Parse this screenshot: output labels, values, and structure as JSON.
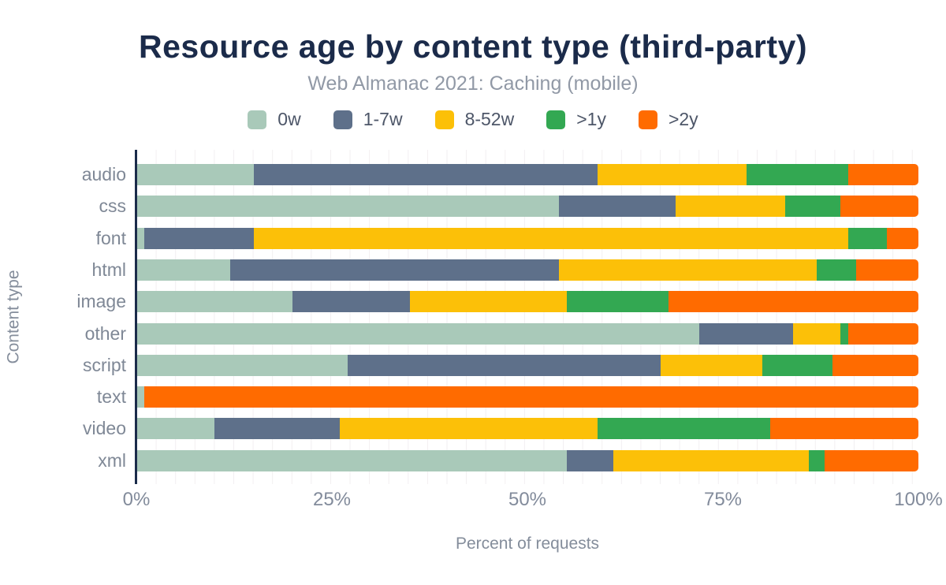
{
  "chart_data": {
    "type": "bar",
    "orientation": "horizontal",
    "stacked": true,
    "title": "Resource age by content type (third-party)",
    "subtitle": "Web Almanac 2021: Caching (mobile)",
    "xlabel": "Percent of requests",
    "ylabel": "Content type",
    "categories": [
      "audio",
      "css",
      "font",
      "html",
      "image",
      "other",
      "script",
      "text",
      "video",
      "xml"
    ],
    "series": [
      {
        "name": "0w",
        "color": "#a9c9b9",
        "values": [
          15,
          54,
          1,
          12,
          20,
          72,
          27,
          1,
          10,
          55
        ]
      },
      {
        "name": "1-7w",
        "color": "#5e708a",
        "values": [
          44,
          15,
          14,
          42,
          15,
          12,
          40,
          0,
          16,
          6
        ]
      },
      {
        "name": "8-52w",
        "color": "#fcc008",
        "values": [
          19,
          14,
          76,
          33,
          20,
          6,
          13,
          0,
          33,
          25
        ]
      },
      {
        "name": ">1y",
        "color": "#33a852",
        "values": [
          13,
          7,
          5,
          5,
          13,
          1,
          9,
          0,
          22,
          2
        ]
      },
      {
        "name": ">2y",
        "color": "#ff6b00",
        "values": [
          9,
          10,
          4,
          8,
          32,
          9,
          11,
          99,
          19,
          12
        ]
      }
    ],
    "xlim": [
      0,
      100
    ],
    "xticks": [
      "0%",
      "25%",
      "50%",
      "75%",
      "100%"
    ],
    "grid": "faint vertical minor gridlines every 2.5%",
    "legend_position": "top",
    "accent_colors": {
      "title": "#1b2b4a",
      "subtitle": "#9199a6",
      "axis_line": "#1b2b4a",
      "axis_text": "#828b9b"
    }
  }
}
